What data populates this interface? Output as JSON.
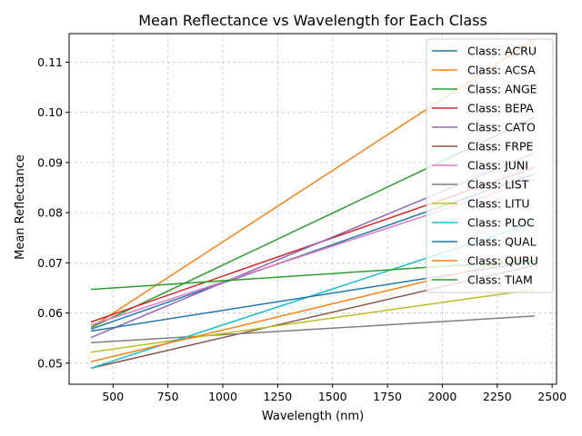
{
  "chart_data": {
    "type": "line",
    "title": "Mean Reflectance vs Wavelength for Each Class",
    "xlabel": "Wavelength (nm)",
    "ylabel": "Mean Reflectance",
    "xlim": [
      300,
      2520
    ],
    "ylim": [
      0.0458,
      0.1157
    ],
    "xticks": [
      500,
      750,
      1000,
      1250,
      1500,
      1750,
      2000,
      2250,
      2500
    ],
    "xtick_labels": [
      "500",
      "750",
      "1000",
      "1250",
      "1500",
      "1750",
      "2000",
      "2250",
      "2500"
    ],
    "yticks": [
      0.05,
      0.06,
      0.07,
      0.08,
      0.09,
      0.1,
      0.11
    ],
    "ytick_labels": [
      "0.05",
      "0.06",
      "0.07",
      "0.08",
      "0.09",
      "0.10",
      "0.11"
    ],
    "grid": true,
    "legend_position": "upper right",
    "series": [
      {
        "name": "Class: ACRU",
        "color": "#1f77b4",
        "x": [
          400,
          2420
        ],
        "y": [
          0.0568,
          0.0877
        ]
      },
      {
        "name": "Class: ACSA",
        "color": "#ff7f0e",
        "x": [
          400,
          2420
        ],
        "y": [
          0.0571,
          0.1146
        ]
      },
      {
        "name": "Class: ANGE",
        "color": "#2ca02c",
        "x": [
          400,
          2420
        ],
        "y": [
          0.0571,
          0.099
        ]
      },
      {
        "name": "Class: BEPA",
        "color": "#d62728",
        "x": [
          400,
          2420
        ],
        "y": [
          0.0582,
          0.089
        ]
      },
      {
        "name": "Class: CATO",
        "color": "#9467bd",
        "x": [
          400,
          2420
        ],
        "y": [
          0.0551,
          0.0919
        ]
      },
      {
        "name": "Class: FRPE",
        "color": "#8c564b",
        "x": [
          400,
          2420
        ],
        "y": [
          0.049,
          0.0695
        ]
      },
      {
        "name": "Class: JUNI",
        "color": "#e377c2",
        "x": [
          400,
          2420
        ],
        "y": [
          0.0576,
          0.0865
        ]
      },
      {
        "name": "Class: LIST",
        "color": "#7f7f7f",
        "x": [
          400,
          2420
        ],
        "y": [
          0.0541,
          0.0594
        ]
      },
      {
        "name": "Class: LITU",
        "color": "#bcbd22",
        "x": [
          400,
          2420
        ],
        "y": [
          0.0522,
          0.0647
        ]
      },
      {
        "name": "Class: PLOC",
        "color": "#17becf",
        "x": [
          400,
          2420
        ],
        "y": [
          0.049,
          0.078
        ]
      },
      {
        "name": "Class: QUAL",
        "color": "#1f77b4",
        "x": [
          400,
          2420
        ],
        "y": [
          0.0564,
          0.0703
        ]
      },
      {
        "name": "Class: QURU",
        "color": "#ff7f0e",
        "x": [
          400,
          2420
        ],
        "y": [
          0.0503,
          0.0715
        ]
      },
      {
        "name": "Class: TIAM",
        "color": "#2ca02c",
        "x": [
          400,
          2420
        ],
        "y": [
          0.0647,
          0.0705
        ]
      }
    ]
  }
}
